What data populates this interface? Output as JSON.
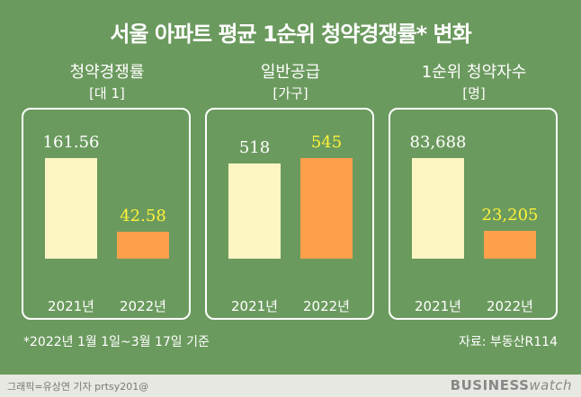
{
  "title": "서울 아파트 평균 1순위 청약경쟁률* 변화",
  "colors": {
    "background": "#6b9a5e",
    "bar_2021": "#fdf6c3",
    "bar_2022": "#fca04c",
    "value_2022": "#fff23a",
    "value_2021": "#ffffff"
  },
  "chart_data": [
    {
      "type": "bar",
      "title": "청약경쟁률",
      "unit": "[대 1]",
      "categories": [
        "2021년",
        "2022년"
      ],
      "values": [
        161.56,
        42.58
      ],
      "value_labels": [
        "161.56",
        "42.58"
      ]
    },
    {
      "type": "bar",
      "title": "일반공급",
      "unit": "[가구]",
      "categories": [
        "2021년",
        "2022년"
      ],
      "values": [
        518,
        545
      ],
      "value_labels": [
        "518",
        "545"
      ]
    },
    {
      "type": "bar",
      "title": "1순위 청약자수",
      "unit": "[명]",
      "categories": [
        "2021년",
        "2022년"
      ],
      "values": [
        83688,
        23205
      ],
      "value_labels": [
        "83,688",
        "23,205"
      ]
    }
  ],
  "footnote": "*2022년 1월 1일~3월 17일 기준",
  "source": "자료: 부동산R114",
  "credit": "그래픽=유상연 기자 prtsy201@",
  "logo": {
    "main": "BUSINESS",
    "sub": "watch"
  }
}
